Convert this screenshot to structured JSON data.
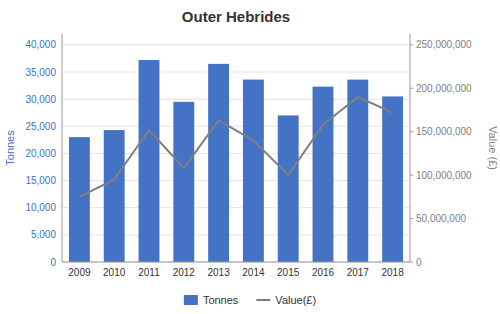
{
  "chart_data": {
    "type": "bar",
    "title": "Outer Hebrides",
    "categories": [
      "2009",
      "2010",
      "2011",
      "2012",
      "2013",
      "2014",
      "2015",
      "2016",
      "2017",
      "2018"
    ],
    "series": [
      {
        "name": "Tonnes",
        "type": "bar",
        "color": "#4472C4",
        "values": [
          23000,
          24300,
          37200,
          29500,
          36500,
          33600,
          27000,
          32300,
          33600,
          30500
        ]
      },
      {
        "name": "Value(£)",
        "type": "line",
        "color": "#7F7F7F",
        "axis": "y2",
        "values": [
          75000000,
          95000000,
          152000000,
          108000000,
          163000000,
          140000000,
          100000000,
          158000000,
          190000000,
          172000000
        ]
      }
    ],
    "y_label": "Tonnes",
    "y2_label": "Value (£)",
    "ylim": [
      0,
      42000
    ],
    "yticks": [
      0,
      {
        "value": 5000,
        "label": "5,000"
      },
      {
        "value": 10000,
        "label": "10,000"
      },
      {
        "value": 15000,
        "label": "15,000"
      },
      {
        "value": 20000,
        "label": "20,000"
      },
      {
        "value": 25000,
        "label": "25,000"
      },
      {
        "value": 30000,
        "label": "30,000"
      },
      {
        "value": 35000,
        "label": "35,000"
      },
      {
        "value": 40000,
        "label": "40,000"
      }
    ],
    "y2lim": [
      0,
      262500000
    ],
    "y2ticks": [
      0,
      {
        "value": 50000000,
        "label": "50,000,000"
      },
      {
        "value": 100000000,
        "label": "100,000,000"
      },
      {
        "value": 150000000,
        "label": "150,000,000"
      },
      {
        "value": 200000000,
        "label": "200,000,000"
      },
      {
        "value": 250000000,
        "label": "250,000,000"
      }
    ],
    "grid": true,
    "legend": "bottom"
  }
}
